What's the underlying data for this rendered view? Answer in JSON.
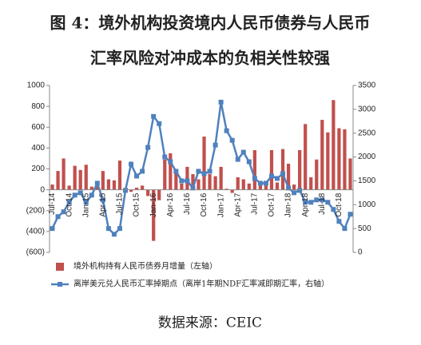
{
  "chart_data": {
    "type": "bar_line",
    "title": "图 4：境外机构投资境内人民币债券与人民币",
    "subtitle": "汇率风险对冲成本的负相关性较强",
    "source": "数据来源：CEIC",
    "categories": [
      "Jul-14",
      null,
      null,
      "Oct-14",
      null,
      null,
      "Jan-15",
      null,
      null,
      "Apr-15",
      null,
      null,
      "Jul-15",
      null,
      null,
      "Oct-15",
      null,
      null,
      "Jan-16",
      null,
      null,
      "Apr-16",
      null,
      null,
      "Jul-16",
      null,
      null,
      "Oct-16",
      null,
      null,
      "Jan-17",
      null,
      null,
      "Apr-17",
      null,
      null,
      "Jul-17",
      null,
      null,
      "Oct-17",
      null,
      null,
      "Jan-18",
      null,
      null,
      "Apr-18",
      null,
      null,
      "Jul-18",
      null,
      null,
      "Oct-18",
      null,
      null
    ],
    "series": [
      {
        "name": "境外机构持有人民币债券月增量（左轴）",
        "color": "#c0504d",
        "type": "bar",
        "values": [
          50,
          180,
          300,
          40,
          230,
          190,
          240,
          30,
          80,
          180,
          100,
          90,
          280,
          -10,
          -20,
          20,
          40,
          -60,
          -490,
          -100,
          290,
          350,
          160,
          60,
          220,
          150,
          100,
          510,
          150,
          130,
          220,
          10,
          -30,
          120,
          100,
          60,
          380,
          40,
          50,
          380,
          70,
          390,
          250,
          50,
          380,
          630,
          120,
          290,
          670,
          550,
          860,
          590,
          580,
          300
        ]
      },
      {
        "name": "离岸美元兑人民币汇率掉期点（离岸1年期NDF汇率减即期汇率，右轴）",
        "color": "#4f81bd",
        "type": "line",
        "axis": "y2",
        "values": [
          500,
          750,
          850,
          1050,
          1200,
          1250,
          1050,
          1200,
          1450,
          1100,
          500,
          380,
          500,
          1300,
          1850,
          1600,
          1700,
          2200,
          2850,
          2700,
          2000,
          1900,
          1700,
          1500,
          1500,
          1350,
          1700,
          1650,
          1700,
          2250,
          3150,
          2550,
          2350,
          1950,
          2100,
          1900,
          1550,
          1450,
          1450,
          1600,
          1550,
          1650,
          1350,
          1250,
          1300,
          1050,
          1050,
          1100,
          1100,
          1050,
          900,
          650,
          500,
          800
        ]
      }
    ],
    "ylim": [
      -600,
      1000
    ],
    "yticks": [
      {
        "value": -600,
        "label": "(600)"
      },
      {
        "value": -400,
        "label": "(400)"
      },
      {
        "value": -200,
        "label": "(200)"
      },
      0,
      200,
      400,
      600,
      800,
      1000
    ],
    "y2lim": [
      0,
      3500
    ],
    "y2ticks": [
      0,
      500,
      1000,
      1500,
      2000,
      2500,
      3000,
      3500
    ]
  }
}
